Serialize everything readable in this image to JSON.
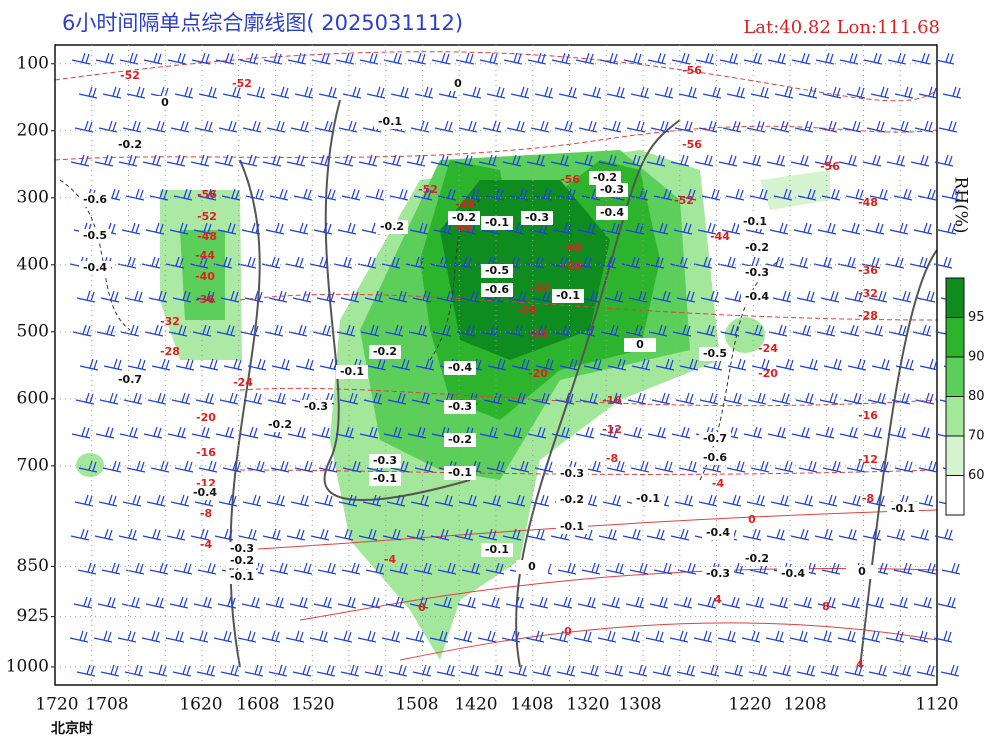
{
  "chart_data": {
    "type": "time-height-cross-section",
    "title": "6小时间隔单点综合廓线图( 2025031112)",
    "location": "Lat:40.82  Lon:111.68",
    "x_label": "北京时",
    "categories": [
      "1720",
      "1708",
      "1620",
      "1608",
      "1520",
      "1508",
      "1420",
      "1408",
      "1320",
      "1308",
      "1220",
      "1208",
      "1120"
    ],
    "ylim": [
      72,
      1027
    ],
    "yticks": [
      100,
      200,
      300,
      400,
      500,
      600,
      700,
      850,
      925,
      1000
    ],
    "y_inverted": true,
    "grid": true,
    "colorbar": {
      "label": "RH(%)",
      "ticks": [
        60,
        70,
        80,
        90,
        95
      ],
      "colors": [
        "#ffffff",
        "#d6f4cf",
        "#a3e79b",
        "#5cce5a",
        "#2cb42c",
        "#0e8c1e"
      ]
    },
    "temperature_color": "#e02020",
    "omega_color": "#111111",
    "temperature_labels": [
      "-52",
      "-52",
      "-56",
      "-56",
      "-56",
      "-56",
      "-52",
      "-48",
      "-44",
      "-40",
      "-36",
      "-32",
      "-28",
      "-24",
      "-20",
      "-16",
      "-12",
      "-8",
      "-4",
      "-52",
      "-48",
      "-44",
      "-56",
      "-52",
      "-48",
      "-44",
      "-40",
      "-36",
      "-32",
      "-28",
      "-24",
      "-20",
      "-16",
      "-12",
      "-8",
      "-4",
      "-36",
      "-32",
      "-28",
      "-24",
      "-20",
      "-16",
      "-12",
      "-8",
      "0",
      "-4",
      "0",
      "0",
      "4",
      "8",
      "4"
    ],
    "omega_labels": [
      "-0.2",
      "-0.6",
      "-0.5",
      "-0.4",
      "-0.1",
      "-0.2",
      "-0.2",
      "-0.1",
      "-0.3",
      "-0.2",
      "-0.3",
      "-0.4",
      "-0.5",
      "-0.6",
      "-0.1",
      "-0.2",
      "-0.4",
      "-0.3",
      "-0.2",
      "-0.3",
      "-0.1",
      "-0.1",
      "-0.5",
      "-0.7",
      "-0.6",
      "-0.3",
      "-0.2",
      "-0.1",
      "-0.1",
      "-0.4",
      "-0.3",
      "-0.2",
      "-0.4",
      "-0.1",
      "-0.1",
      "-0.4",
      "-0.3",
      "-0.2",
      "-0.1",
      "-0.1",
      "-0.2",
      "-0.3",
      "-0.4",
      "-0.7",
      "-0.3",
      "-0.2",
      "-0.1",
      "0",
      "0",
      "0",
      "0",
      "0"
    ]
  }
}
